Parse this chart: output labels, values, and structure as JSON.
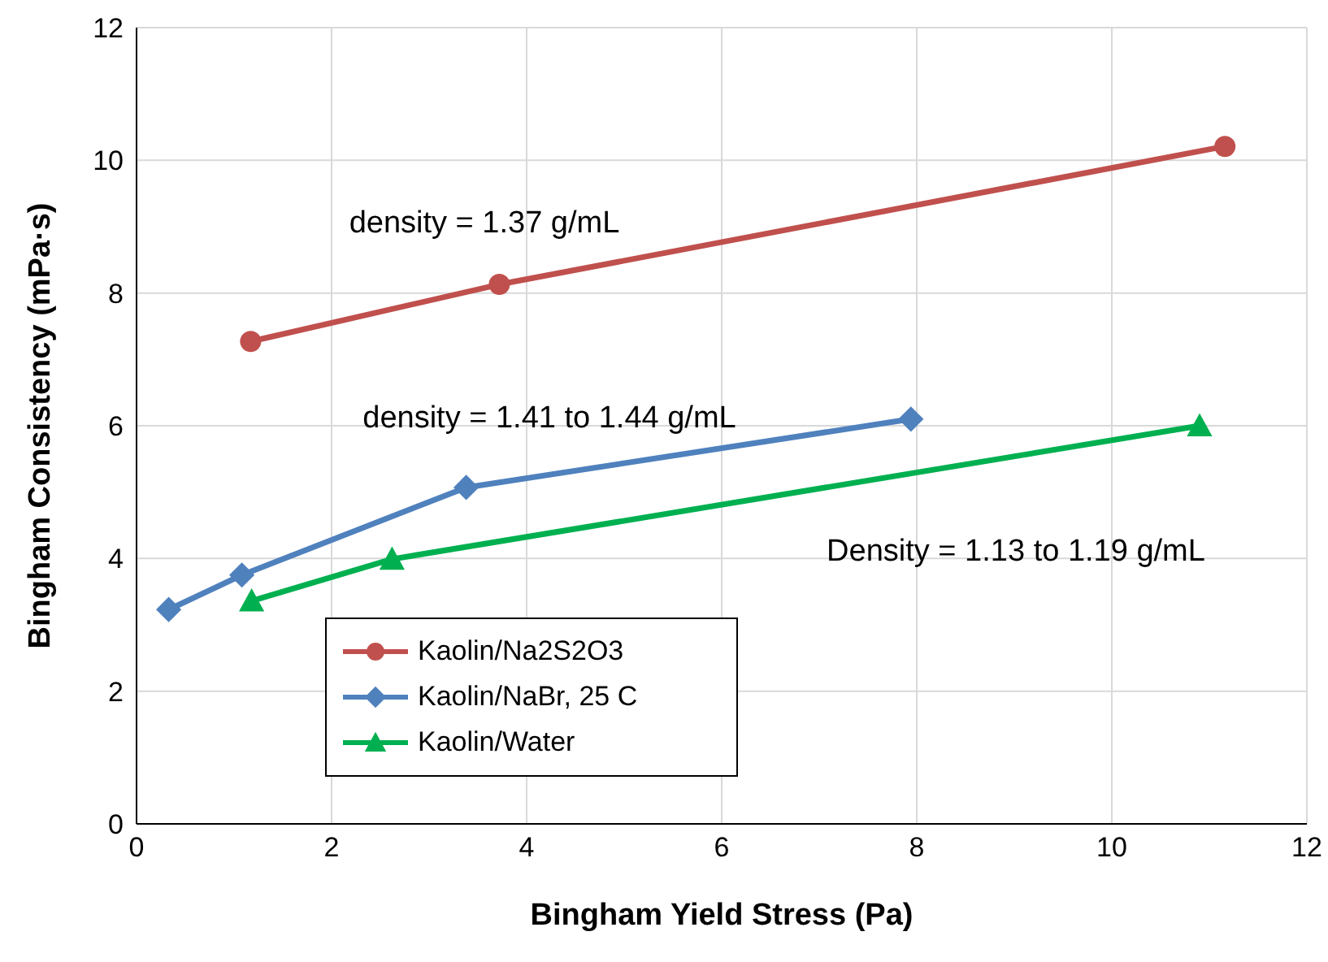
{
  "chart_data": {
    "type": "line",
    "xlabel": "Bingham Yield Stress (Pa)",
    "ylabel": "Bingham Consistency (mPa·s)",
    "xlim": [
      0,
      12
    ],
    "xticks": [
      0,
      2,
      4,
      6,
      8,
      10,
      12
    ],
    "ylim": [
      0,
      12
    ],
    "yticks": [
      0,
      2,
      4,
      6,
      8,
      10,
      12
    ],
    "grid": true,
    "legend": "bottom left",
    "series": [
      {
        "name": "Kaolin/Na2S2O3",
        "color": "#c0504d",
        "marker": "circle",
        "x": [
          1.17,
          3.72,
          11.16
        ],
        "values": [
          7.27,
          8.13,
          10.21
        ]
      },
      {
        "name": "Kaolin/NaBr, 25 C",
        "color": "#4f81bd",
        "marker": "diamond",
        "x": [
          0.33,
          1.08,
          3.38,
          7.94
        ],
        "values": [
          3.23,
          3.75,
          5.07,
          6.1
        ]
      },
      {
        "name": "Kaolin/Water",
        "color": "#00b050",
        "marker": "triangle",
        "x": [
          1.18,
          2.62,
          10.9
        ],
        "values": [
          3.36,
          3.99,
          6.0
        ]
      }
    ],
    "annotations": [
      "density = 1.37 g/mL",
      "density = 1.41 to 1.44 g/mL",
      "Density = 1.13 to 1.19 g/mL"
    ]
  }
}
